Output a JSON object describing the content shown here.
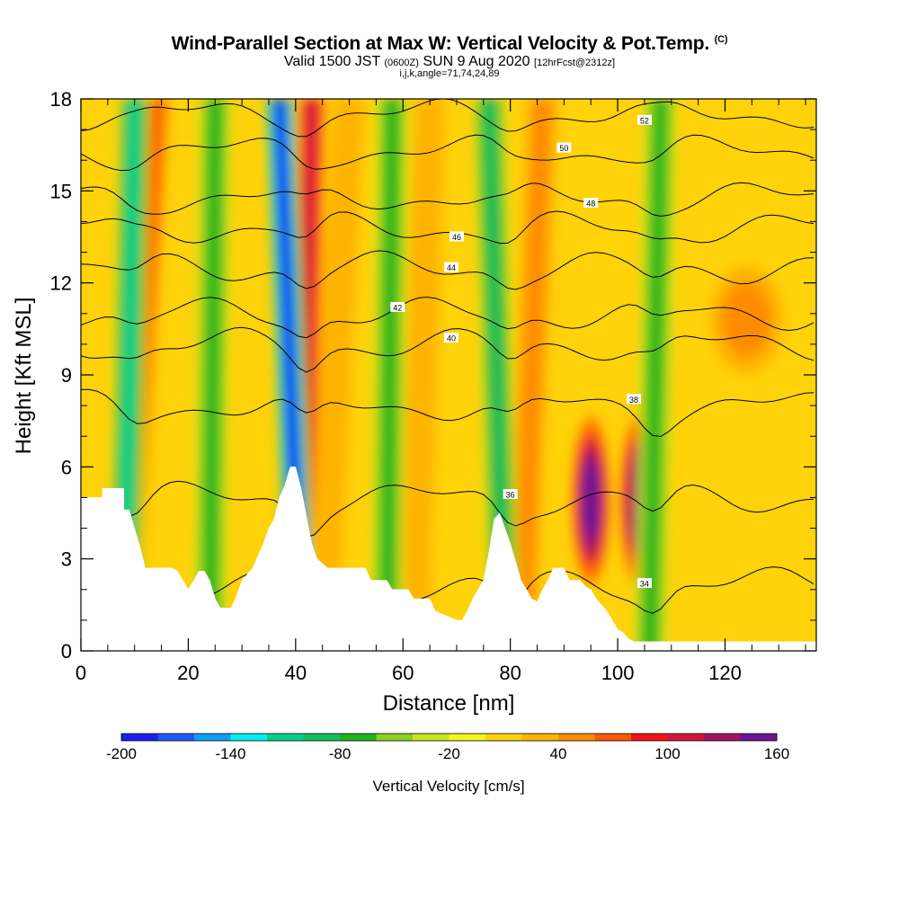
{
  "chart_data": {
    "type": "heatmap",
    "title": "Wind-Parallel Section at Max W: Vertical Velocity & Pot.Temp.",
    "title_tag": "(C)",
    "subtitle_main_a": "Valid 1500 JST",
    "subtitle_small_a": "(0600Z)",
    "subtitle_main_b": "SUN 9 Aug 2020",
    "subtitle_small_b": "[12hrFcst@2312z]",
    "subtitle2": "i,j,k,angle=71,74,24,89",
    "xlabel": "Distance [nm]",
    "ylabel": "Height [Kft MSL]",
    "xlim": [
      0,
      137
    ],
    "ylim": [
      0,
      18
    ],
    "x_ticks": [
      0,
      20,
      40,
      60,
      80,
      100,
      120
    ],
    "y_ticks": [
      0,
      3,
      6,
      9,
      12,
      15,
      18
    ],
    "colorbar": {
      "title": "Vertical Velocity [cm/s]",
      "min": -200,
      "max": 160,
      "step": 20,
      "tick_labels": [
        "-200",
        "-140",
        "-80",
        "-20",
        "40",
        "100",
        "160"
      ],
      "colors": [
        "#1e1ef0",
        "#1e5af5",
        "#0aa0f5",
        "#00f0f0",
        "#00d28c",
        "#14be5a",
        "#1eb41e",
        "#8cd21e",
        "#c8e61e",
        "#f5f51e",
        "#ffd20a",
        "#ffb400",
        "#ff8c00",
        "#ff5a00",
        "#f51414",
        "#d7143c",
        "#a01464",
        "#6e1496"
      ]
    },
    "updraft_bands": [
      {
        "x_bottom": 8,
        "x_top": 14,
        "w": 60
      },
      {
        "x_bottom": 41,
        "x_top": 43,
        "w": 110
      },
      {
        "x_bottom": 45,
        "x_top": 50,
        "w": 30
      },
      {
        "x_bottom": 62,
        "x_top": 65,
        "w": 30
      },
      {
        "x_bottom": 82,
        "x_top": 86,
        "w": 50
      },
      {
        "x_bottom": 95,
        "x_top": 95,
        "w": 150
      },
      {
        "x_bottom": 104,
        "x_top": 104,
        "w": 140
      },
      {
        "x_bottom": 124,
        "x_top": 124,
        "w": 45
      }
    ],
    "downdraft_bands": [
      {
        "x_bottom": 41,
        "x_top": 37,
        "w": -190
      },
      {
        "x_bottom": 24,
        "x_top": 25,
        "w": -70
      },
      {
        "x_bottom": 8,
        "x_top": 10,
        "w": -100
      },
      {
        "x_bottom": 79,
        "x_top": 76,
        "w": -80
      },
      {
        "x_bottom": 57,
        "x_top": 58,
        "w": -70
      },
      {
        "x_bottom": 106,
        "x_top": 108,
        "w": -60
      }
    ],
    "theta_contours": [
      {
        "label": "34",
        "label_x": 105,
        "label_y": 2.2,
        "base_y": 2.2
      },
      {
        "label": "36",
        "label_x": 80,
        "label_y": 5.1,
        "base_y": 5.0
      },
      {
        "label": "38",
        "label_x": 103,
        "label_y": 8.2,
        "base_y": 8.0
      },
      {
        "label": "40",
        "label_x": 69,
        "label_y": 10.2,
        "base_y": 10.0
      },
      {
        "label": "42",
        "label_x": 59,
        "label_y": 11.2,
        "base_y": 11.0
      },
      {
        "label": "44",
        "label_x": 69,
        "label_y": 12.5,
        "base_y": 12.5
      },
      {
        "label": "46",
        "label_x": 70,
        "label_y": 13.5,
        "base_y": 13.8
      },
      {
        "label": "48",
        "label_x": 95,
        "label_y": 14.6,
        "base_y": 14.8
      },
      {
        "label": "50",
        "label_x": 90,
        "label_y": 16.4,
        "base_y": 16.3
      },
      {
        "label": "52",
        "label_x": 105,
        "label_y": 17.3,
        "base_y": 17.5
      }
    ],
    "terrain": [
      [
        0,
        5.0
      ],
      [
        4,
        5.0
      ],
      [
        4,
        5.3
      ],
      [
        8,
        5.3
      ],
      [
        8,
        4.6
      ],
      [
        9,
        4.6
      ],
      [
        10,
        4.0
      ],
      [
        11,
        3.4
      ],
      [
        12,
        2.7
      ],
      [
        13,
        2.7
      ],
      [
        14,
        2.7
      ],
      [
        17,
        2.7
      ],
      [
        18,
        2.6
      ],
      [
        19,
        2.3
      ],
      [
        20,
        2.0
      ],
      [
        21,
        2.3
      ],
      [
        22,
        2.6
      ],
      [
        23,
        2.6
      ],
      [
        24,
        2.3
      ],
      [
        25,
        1.7
      ],
      [
        26,
        1.4
      ],
      [
        28,
        1.4
      ],
      [
        29,
        1.8
      ],
      [
        30,
        2.3
      ],
      [
        32,
        2.7
      ],
      [
        33,
        3.1
      ],
      [
        34,
        3.5
      ],
      [
        35,
        4.0
      ],
      [
        36,
        4.3
      ],
      [
        37,
        5.0
      ],
      [
        38,
        5.4
      ],
      [
        39,
        6.0
      ],
      [
        40,
        6.0
      ],
      [
        41,
        5.3
      ],
      [
        42,
        4.4
      ],
      [
        43,
        3.5
      ],
      [
        44,
        3.0
      ],
      [
        46,
        2.7
      ],
      [
        53,
        2.7
      ],
      [
        54,
        2.3
      ],
      [
        57,
        2.3
      ],
      [
        58,
        2.0
      ],
      [
        61,
        2.0
      ],
      [
        62,
        1.7
      ],
      [
        65,
        1.7
      ],
      [
        66,
        1.3
      ],
      [
        70,
        1.0
      ],
      [
        71,
        1.0
      ],
      [
        72,
        1.3
      ],
      [
        73,
        1.7
      ],
      [
        74,
        2.0
      ],
      [
        75,
        2.3
      ],
      [
        76,
        3.2
      ],
      [
        77,
        4.3
      ],
      [
        78,
        4.5
      ],
      [
        79,
        4.0
      ],
      [
        80,
        3.5
      ],
      [
        82,
        2.3
      ],
      [
        84,
        1.7
      ],
      [
        85,
        1.6
      ],
      [
        86,
        2.0
      ],
      [
        87,
        2.3
      ],
      [
        88,
        2.7
      ],
      [
        90,
        2.7
      ],
      [
        91,
        2.3
      ],
      [
        93,
        2.3
      ],
      [
        94,
        2.1
      ],
      [
        95,
        2.0
      ],
      [
        96,
        1.7
      ],
      [
        97,
        1.5
      ],
      [
        98,
        1.3
      ],
      [
        99,
        1.0
      ],
      [
        100,
        0.7
      ],
      [
        101,
        0.6
      ],
      [
        102,
        0.4
      ],
      [
        103,
        0.3
      ],
      [
        137,
        0.3
      ]
    ]
  }
}
